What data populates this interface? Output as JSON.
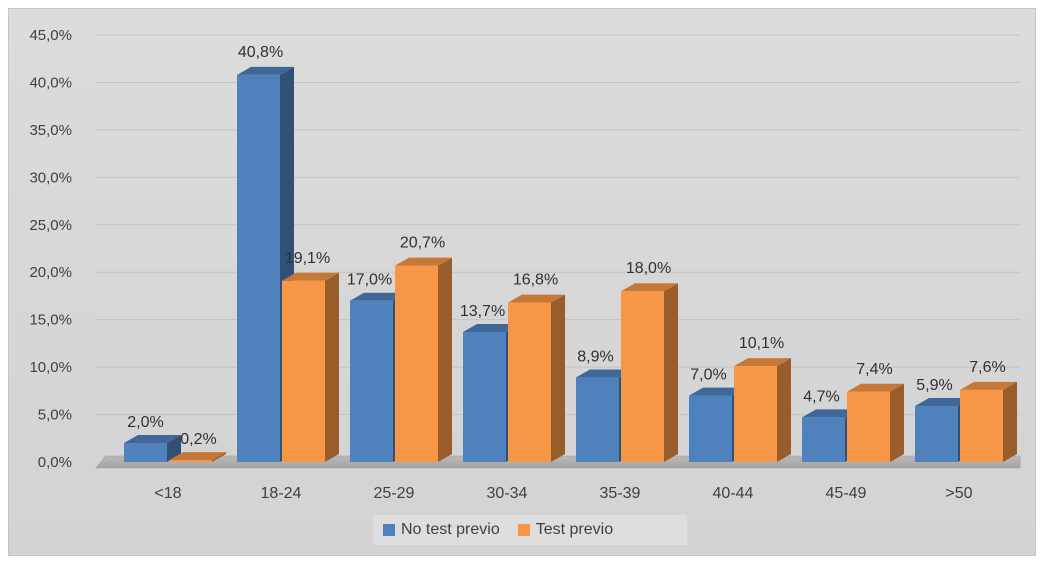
{
  "chart_data": {
    "type": "bar",
    "categories": [
      "<18",
      "18-24",
      "25-29",
      "30-34",
      "35-39",
      "40-44",
      "45-49",
      ">50"
    ],
    "series": [
      {
        "name": "No test previo",
        "values": [
          2.0,
          40.8,
          17.0,
          13.7,
          8.9,
          7.0,
          4.7,
          5.9
        ],
        "labels": [
          "2,0%",
          "40,8%",
          "17,0%",
          "13,7%",
          "8,9%",
          "7,0%",
          "4,7%",
          "5,9%"
        ],
        "color": "#4f81bd"
      },
      {
        "name": "Test previo",
        "values": [
          0.2,
          19.1,
          20.7,
          16.8,
          18.0,
          10.1,
          7.4,
          7.6
        ],
        "labels": [
          "0,2%",
          "19,1%",
          "20,7%",
          "16,8%",
          "18,0%",
          "10,1%",
          "7,4%",
          "7,6%"
        ],
        "color": "#f79646"
      }
    ],
    "y_ticks": [
      "0,0%",
      "5,0%",
      "10,0%",
      "15,0%",
      "20,0%",
      "25,0%",
      "30,0%",
      "35,0%",
      "40,0%",
      "45,0%"
    ],
    "ylim": [
      0,
      45
    ],
    "grid": true,
    "legend_position": "bottom",
    "style": "3d-clustered-column"
  }
}
